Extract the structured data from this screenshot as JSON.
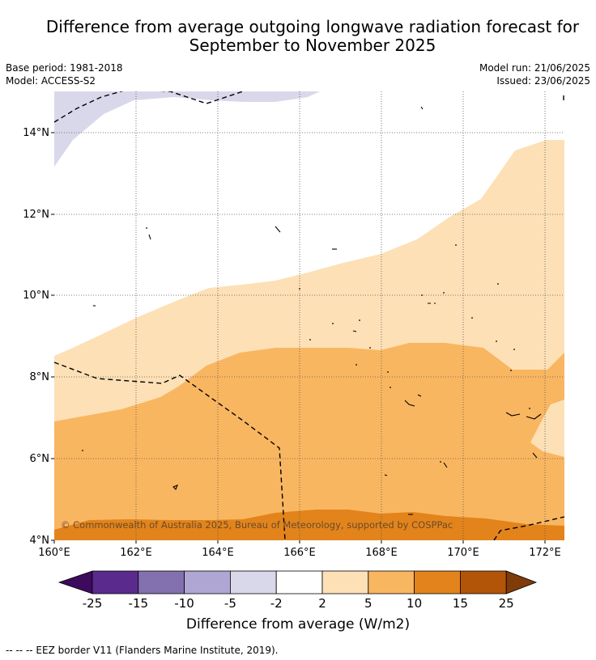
{
  "title_line1": "Difference from average outgoing longwave radiation forecast for",
  "title_line2": "September to November 2025",
  "base_period": "Base period: 1981-2018",
  "model": "Model: ACCESS-S2",
  "model_run": "Model run: 21/06/2025",
  "issued": "Issued: 23/06/2025",
  "copyright": "© Commonwealth of Australia 2025, Bureau of Meteorology, supported by COSPPac",
  "lat_labels": [
    "14°N",
    "12°N",
    "10°N",
    "8°N",
    "6°N",
    "4°N"
  ],
  "lon_labels": [
    "160°E",
    "162°E",
    "164°E",
    "166°E",
    "168°E",
    "170°E",
    "172°E"
  ],
  "colorbar": {
    "title": "Difference from average (W/m2)",
    "ticks": [
      "-25",
      "-15",
      "-10",
      "-5",
      "-2",
      "2",
      "5",
      "10",
      "15",
      "25"
    ],
    "colors": [
      "#3d0a5e",
      "#5a2a8c",
      "#8370ae",
      "#b0a6d3",
      "#d9d8ea",
      "#ffffff",
      "#fde0b6",
      "#f9b660",
      "#e2841b",
      "#b25509",
      "#7f3b08"
    ]
  },
  "footer": "-- -- -- EEZ border V11 (Flanders Marine Institute, 2019)."
}
